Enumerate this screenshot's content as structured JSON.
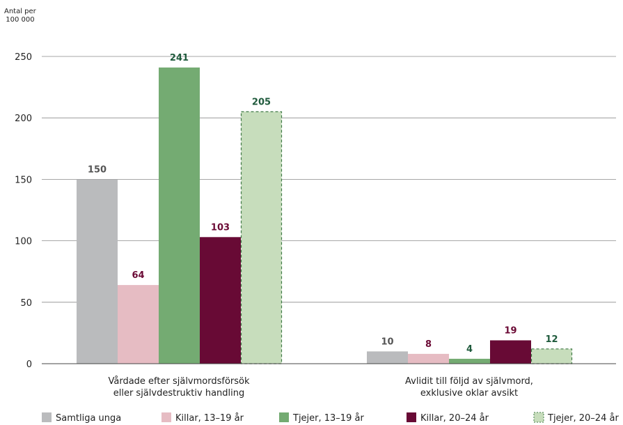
{
  "chart_data": {
    "type": "bar",
    "ylabel_line1": "Antal per",
    "ylabel_line2": "100 000",
    "ylim": [
      0,
      250
    ],
    "yticks": [
      0,
      50,
      100,
      150,
      200,
      250
    ],
    "grid": true,
    "legend_position": "bottom",
    "categories": [
      [
        "Vårdade efter självmordsförsök",
        "eller självdestruktiv handling"
      ],
      [
        "Avlidit till följd av självmord,",
        "exklusive oklar avsikt"
      ]
    ],
    "series": [
      {
        "name": "Samtliga unga",
        "values": [
          150,
          10
        ],
        "color": "#babbbd",
        "label_color": "#555555",
        "dashed": false
      },
      {
        "name": "Killar, 13–19 år",
        "values": [
          64,
          8
        ],
        "color": "#e6bcc3",
        "label_color": "#6b0a35",
        "dashed": false
      },
      {
        "name": "Tjejer, 13–19 år",
        "values": [
          241,
          4
        ],
        "color": "#74ab72",
        "label_color": "#1f5a3c",
        "dashed": false
      },
      {
        "name": "Killar, 20–24 år",
        "values": [
          103,
          19
        ],
        "color": "#680a35",
        "label_color": "#6b0a35",
        "dashed": false
      },
      {
        "name": "Tjejer, 20–24 år",
        "values": [
          205,
          12
        ],
        "color": "#c7ddbc",
        "label_color": "#1f5a3c",
        "dashed": true
      }
    ]
  }
}
